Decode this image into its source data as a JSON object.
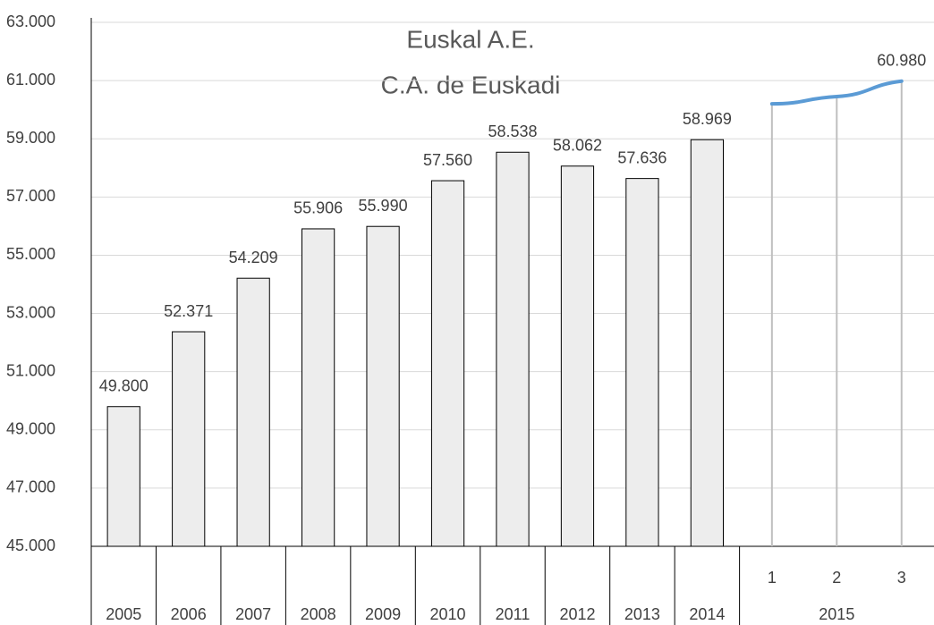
{
  "chart_data": {
    "type": "bar",
    "title": "Euskal A.E.",
    "subtitle": "C.A. de Euskadi",
    "categories": [
      "2005",
      "2006",
      "2007",
      "2008",
      "2009",
      "2010",
      "2011",
      "2012",
      "2013",
      "2014"
    ],
    "values": [
      49800,
      52371,
      54209,
      55906,
      55990,
      57560,
      58538,
      58062,
      57636,
      58969
    ],
    "value_labels": [
      "49.800",
      "52.371",
      "54.209",
      "55.906",
      "55.990",
      "57.560",
      "58.538",
      "58.062",
      "57.636",
      "58.969"
    ],
    "color": "#ededed",
    "line": {
      "type": "line",
      "group": "2015",
      "categories": [
        "1",
        "2",
        "3"
      ],
      "values": [
        60200,
        60450,
        60980
      ],
      "value_labels": [
        null,
        null,
        "60.980"
      ],
      "color": "#5b9bd5"
    },
    "ylim": [
      45000,
      63000
    ],
    "yticks": [
      {
        "value": 45000,
        "label": "45.000"
      },
      {
        "value": 47000,
        "label": "47.000"
      },
      {
        "value": 49000,
        "label": "49.000"
      },
      {
        "value": 51000,
        "label": "51.000"
      },
      {
        "value": 53000,
        "label": "53.000"
      },
      {
        "value": 55000,
        "label": "55.000"
      },
      {
        "value": 57000,
        "label": "57.000"
      },
      {
        "value": 59000,
        "label": "59.000"
      },
      {
        "value": 61000,
        "label": "61.000"
      },
      {
        "value": 63000,
        "label": "63.000"
      }
    ],
    "grid": true
  }
}
